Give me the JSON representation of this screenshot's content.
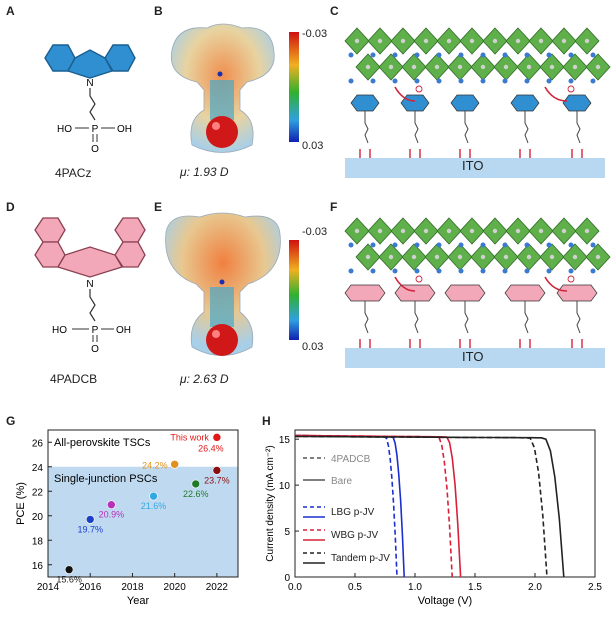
{
  "panels": {
    "A": {
      "letter": "A",
      "molecule_label": "4PACz",
      "atoms": {
        "n": "N",
        "ho_left": "HO",
        "p": "P",
        "oh_right": "OH",
        "o": "O"
      }
    },
    "B": {
      "letter": "B",
      "dipole": "μ: 1.93 D",
      "scale_top": "-0.03",
      "scale_bottom": "0.03"
    },
    "C": {
      "letter": "C",
      "substrate_label": "ITO"
    },
    "D": {
      "letter": "D",
      "molecule_label": "4PADCB",
      "atoms": {
        "n": "N",
        "ho_left": "HO",
        "p": "P",
        "oh_right": "OH",
        "o": "O"
      }
    },
    "E": {
      "letter": "E",
      "dipole": "μ: 2.63 D",
      "scale_top": "-0.03",
      "scale_bottom": "0.03"
    },
    "F": {
      "letter": "F",
      "substrate_label": "ITO"
    },
    "G": {
      "letter": "G"
    },
    "H": {
      "letter": "H"
    }
  },
  "colors": {
    "pacz_blue": "#2f8fd0",
    "padcb_pink": "#f2a8b8",
    "ito_blue": "#b7d8f0",
    "octahedra_green": "#5fb04a",
    "arrow_red": "#d0243c",
    "region_blue": "#bfdaf0",
    "lbg_blue": "#1a2fd0",
    "wbg_red": "#d8203a",
    "tandem_black": "#222222"
  },
  "chart_data": [
    {
      "type": "scatter",
      "title": "",
      "xlabel": "Year",
      "ylabel": "PCE (%)",
      "xlim": [
        2014,
        2023
      ],
      "ylim": [
        15,
        27
      ],
      "xticks": [
        2014,
        2016,
        2018,
        2020,
        2022
      ],
      "yticks": [
        16,
        18,
        20,
        22,
        24,
        26
      ],
      "region_labels": {
        "upper": "All-perovskite TSCs",
        "lower": "Single-junction PSCs"
      },
      "boundary_y": 24,
      "points": [
        {
          "x": 2015,
          "y": 15.6,
          "label": "15.6%",
          "color": "#111111"
        },
        {
          "x": 2016,
          "y": 19.7,
          "label": "19.7%",
          "color": "#1d3fc8"
        },
        {
          "x": 2017,
          "y": 20.9,
          "label": "20.9%",
          "color": "#b82fb8"
        },
        {
          "x": 2019,
          "y": 21.6,
          "label": "21.6%",
          "color": "#32a8e0"
        },
        {
          "x": 2020,
          "y": 24.2,
          "label": "24.2%",
          "color": "#e0901c"
        },
        {
          "x": 2021,
          "y": 22.6,
          "label": "22.6%",
          "color": "#1f7a2a"
        },
        {
          "x": 2022,
          "y": 23.7,
          "label": "23.7%",
          "color": "#8a1010"
        },
        {
          "x": 2022,
          "y": 26.4,
          "label": "26.4%",
          "note": "This work",
          "color": "#e01818"
        }
      ]
    },
    {
      "type": "line",
      "title": "",
      "xlabel": "Voltage (V)",
      "ylabel": "Current density (mA cm⁻²)",
      "xlim": [
        0,
        2.5
      ],
      "ylim": [
        0,
        16
      ],
      "xticks": [
        "0.0",
        "0.5",
        "1.0",
        "1.5",
        "2.0",
        "2.5"
      ],
      "yticks": [
        0,
        5,
        10,
        15
      ],
      "legend": {
        "header_dashed": "4PADCB",
        "header_solid": "Bare",
        "lbg": "LBG p-JV",
        "wbg": "WBG p-JV",
        "tandem": "Tandem p-JV"
      },
      "series": [
        {
          "name": "LBG p-JV",
          "variant": "4PADCB",
          "style": "dashed",
          "color": "#1a2fd0",
          "jsc": 15.4,
          "voc": 0.85,
          "knee": 0.75
        },
        {
          "name": "LBG p-JV",
          "variant": "Bare",
          "style": "solid",
          "color": "#1a2fd0",
          "jsc": 15.4,
          "voc": 0.91,
          "knee": 0.81
        },
        {
          "name": "WBG p-JV",
          "variant": "4PADCB",
          "style": "dashed",
          "color": "#d8203a",
          "jsc": 15.4,
          "voc": 1.31,
          "knee": 1.19
        },
        {
          "name": "WBG p-JV",
          "variant": "Bare",
          "style": "solid",
          "color": "#d8203a",
          "jsc": 15.4,
          "voc": 1.38,
          "knee": 1.26
        },
        {
          "name": "Tandem p-JV",
          "variant": "4PADCB",
          "style": "dashed",
          "color": "#222222",
          "jsc": 15.3,
          "voc": 2.1,
          "knee": 1.95
        },
        {
          "name": "Tandem p-JV",
          "variant": "Bare",
          "style": "solid",
          "color": "#222222",
          "jsc": 15.3,
          "voc": 2.24,
          "knee": 2.07
        }
      ]
    }
  ]
}
